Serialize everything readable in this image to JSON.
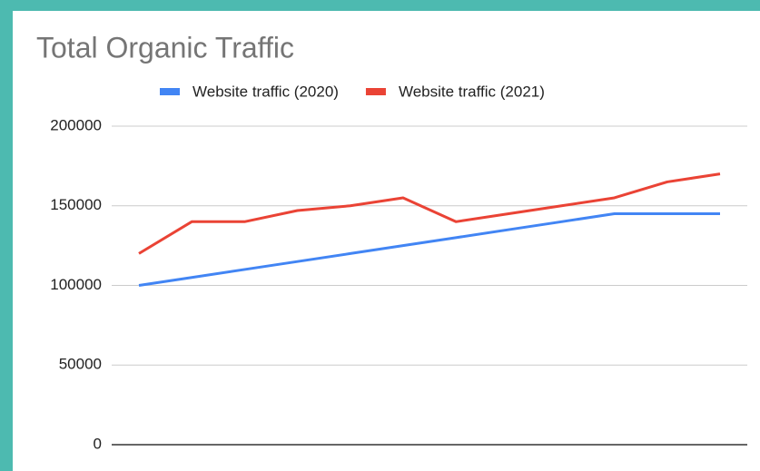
{
  "chart_data": {
    "type": "line",
    "title": "Total Organic Traffic",
    "categories": [
      null,
      null,
      null,
      null,
      null,
      null,
      null,
      null,
      null,
      null,
      null,
      null
    ],
    "series": [
      {
        "name": "Website traffic (2020)",
        "color": "#4285f4",
        "values": [
          100000,
          105000,
          110000,
          115000,
          120000,
          125000,
          130000,
          135000,
          140000,
          145000,
          145000,
          145000
        ]
      },
      {
        "name": "Website traffic (2021)",
        "color": "#ea4335",
        "values": [
          120000,
          140000,
          140000,
          147000,
          150000,
          155000,
          140000,
          145000,
          150000,
          155000,
          165000,
          170000
        ]
      }
    ],
    "ylim": [
      0,
      200000
    ],
    "yticks": [
      0,
      50000,
      100000,
      150000,
      200000
    ],
    "grid": true,
    "legend": "top"
  }
}
